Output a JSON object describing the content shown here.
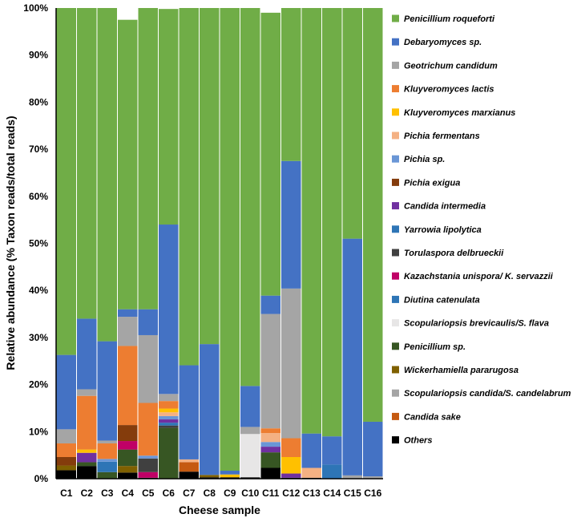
{
  "chart_data": {
    "type": "bar",
    "stacked": true,
    "xlabel": "Cheese sample",
    "ylabel": "Relative abundance (% Taxon reads/total reads)",
    "ylim": [
      0,
      100
    ],
    "y_ticks": [
      "0%",
      "10%",
      "20%",
      "30%",
      "40%",
      "50%",
      "60%",
      "70%",
      "80%",
      "90%",
      "100%"
    ],
    "grid": false,
    "legend_position": "right",
    "categories": [
      "C1",
      "C2",
      "C3",
      "C4",
      "C5",
      "C6",
      "C7",
      "C8",
      "C9",
      "C10",
      "C11",
      "C12",
      "C13",
      "C14",
      "C15",
      "C16"
    ],
    "series": [
      {
        "name": "Others",
        "color": "#000000",
        "values": [
          1.8,
          2.7,
          0,
          1.3,
          0.2,
          0,
          1.5,
          0.3,
          0.3,
          0.3,
          2.3,
          0.2,
          0.2,
          0,
          0,
          0
        ]
      },
      {
        "name": "Candida sake",
        "color": "#C55A11",
        "values": [
          0,
          0,
          0,
          0,
          0,
          0,
          2.0,
          0,
          0,
          0,
          0,
          0,
          0,
          0,
          0,
          0
        ]
      },
      {
        "name": "Scopulariopsis candida/S. candelabrum",
        "color": "#A5A5A5",
        "values": [
          0,
          0,
          0,
          0,
          0,
          0,
          0,
          0,
          0,
          0,
          0,
          0,
          0,
          0,
          0,
          0.5
        ]
      },
      {
        "name": "Wickerhamiella pararugosa",
        "color": "#7F6000",
        "values": [
          1.0,
          0,
          0,
          1.4,
          0,
          0,
          0,
          0.5,
          0,
          0,
          0,
          0,
          0,
          0,
          0,
          0
        ]
      },
      {
        "name": "Penicillium sp.",
        "color": "#375623",
        "values": [
          0,
          0.8,
          1.4,
          3.5,
          0,
          10.8,
          0,
          0,
          0,
          0,
          3.3,
          0,
          0,
          0,
          0,
          0
        ]
      },
      {
        "name": "Scopulariopsis brevicaulis/S. flava",
        "color": "#E7E6E6",
        "values": [
          0,
          0,
          0,
          0,
          0,
          0,
          0,
          0,
          0,
          9.2,
          0,
          0,
          0,
          0,
          0,
          0
        ]
      },
      {
        "name": "Diutina catenulata",
        "color": "#2E75B6",
        "values": [
          0,
          0,
          0,
          0,
          0,
          0,
          0,
          0,
          0,
          0,
          0,
          0,
          0,
          3.0,
          0,
          0
        ]
      },
      {
        "name": "Kazachstania unispora/ K. servazzii",
        "color": "#C00066",
        "values": [
          0,
          0,
          0,
          1.8,
          1.2,
          0,
          0,
          0,
          0,
          0,
          0,
          0,
          0,
          0,
          0,
          0
        ]
      },
      {
        "name": "Torulaspora delbrueckii",
        "color": "#404040",
        "values": [
          0,
          0,
          0,
          0,
          2.9,
          0.5,
          0,
          0,
          0,
          0,
          0,
          0,
          0,
          0,
          0,
          0
        ]
      },
      {
        "name": "Yarrowia lipolytica",
        "color": "#2E75B6",
        "values": [
          0,
          0,
          2.2,
          0,
          0,
          0.6,
          0,
          0,
          0,
          0,
          0,
          0,
          0,
          0,
          0,
          0
        ]
      },
      {
        "name": "Candida intermedia",
        "color": "#7030A0",
        "values": [
          0,
          2.0,
          0,
          0,
          0,
          0.7,
          0,
          0,
          0,
          0,
          1.2,
          0.9,
          0,
          0,
          0,
          0
        ]
      },
      {
        "name": "Pichia exigua",
        "color": "#843C0C",
        "values": [
          1.8,
          0,
          0,
          3.4,
          0,
          0,
          0,
          0,
          0,
          0,
          0,
          0,
          0,
          0,
          0,
          0
        ]
      },
      {
        "name": "Pichia sp.",
        "color": "#6A96D6",
        "values": [
          0,
          0,
          0.6,
          0,
          0.6,
          0.7,
          0,
          0,
          0,
          0,
          1.0,
          0,
          0,
          0,
          0,
          0
        ]
      },
      {
        "name": "Pichia fermentans",
        "color": "#F4B183",
        "values": [
          0,
          0,
          0,
          0,
          0,
          0.8,
          0.6,
          0,
          0,
          0,
          1.9,
          0,
          2.1,
          0,
          0,
          0
        ]
      },
      {
        "name": "Kluyveromyces marxianus",
        "color": "#FFC000",
        "values": [
          0,
          0.7,
          0,
          0,
          0,
          0.8,
          0,
          0,
          0.6,
          0,
          0,
          3.5,
          0,
          0,
          0,
          0
        ]
      },
      {
        "name": "Kluyveromyces lactis",
        "color": "#ED7D31",
        "values": [
          2.9,
          11.4,
          3.3,
          16.8,
          11.2,
          1.6,
          0,
          0,
          0,
          0,
          1.0,
          4.0,
          0,
          0,
          0,
          0
        ]
      },
      {
        "name": "Geotrichum candidum",
        "color": "#A5A5A5",
        "values": [
          3.0,
          1.4,
          0.6,
          6.2,
          14.4,
          1.5,
          0,
          0,
          0,
          1.5,
          24.3,
          31.8,
          0,
          0,
          0.7,
          0
        ]
      },
      {
        "name": "Debaryomyces sp.",
        "color": "#4472C4",
        "values": [
          15.8,
          15.0,
          21.1,
          1.6,
          5.5,
          36.0,
          20.0,
          27.8,
          0.8,
          8.7,
          3.9,
          27.1,
          7.3,
          6.0,
          50.3,
          11.6
        ]
      },
      {
        "name": "Penicillium roqueforti",
        "color": "#70AD47",
        "values": [
          73.7,
          66.0,
          70.8,
          61.5,
          64.0,
          45.8,
          75.9,
          71.4,
          98.3,
          80.3,
          60.1,
          32.5,
          90.4,
          91.0,
          49.0,
          87.9
        ]
      }
    ],
    "legend_order": [
      "Penicillium roqueforti",
      "Debaryomyces sp.",
      "Geotrichum candidum",
      "Kluyveromyces lactis",
      "Kluyveromyces marxianus",
      "Pichia fermentans",
      "Pichia sp.",
      "Pichia exigua",
      "Candida intermedia",
      "Yarrowia lipolytica",
      "Torulaspora delbrueckii",
      "Kazachstania unispora/ K. servazzii",
      "Diutina catenulata",
      "Scopulariopsis brevicaulis/S. flava",
      "Penicillium sp.",
      "Wickerhamiella pararugosa",
      "Scopulariopsis candida/S. candelabrum",
      "Candida sake",
      "Others"
    ]
  }
}
